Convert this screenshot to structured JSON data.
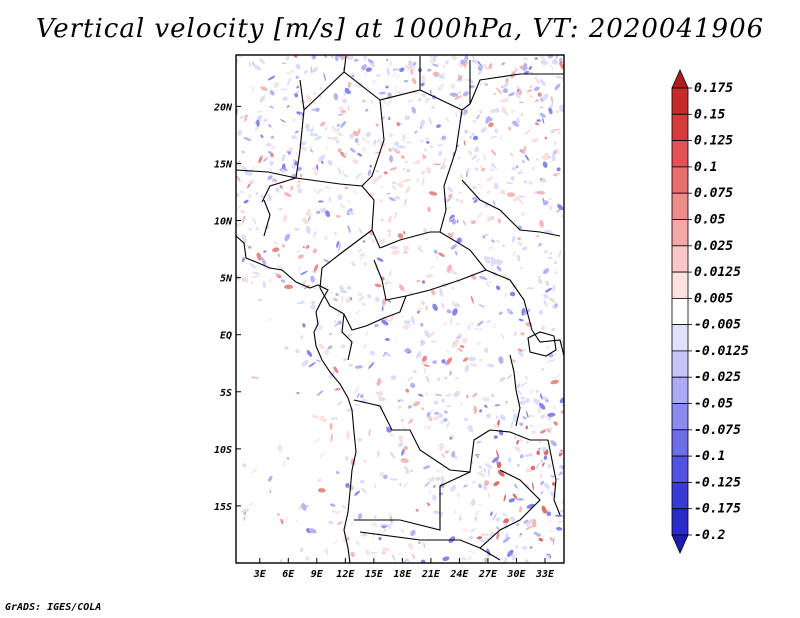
{
  "chart_data": {
    "type": "heatmap",
    "title": "Vertical velocity [m/s] at 1000hPa, VT: 2020041906",
    "x_ticks": [
      "3E",
      "6E",
      "9E",
      "12E",
      "15E",
      "18E",
      "21E",
      "24E",
      "27E",
      "30E",
      "33E"
    ],
    "x_tick_values": [
      3,
      6,
      9,
      12,
      15,
      18,
      21,
      24,
      27,
      30,
      33
    ],
    "y_ticks": [
      "20N",
      "15N",
      "10N",
      "5N",
      "EQ",
      "5S",
      "10S",
      "15S"
    ],
    "y_tick_values": [
      20,
      15,
      10,
      5,
      0,
      -5,
      -10,
      -15
    ],
    "xlim": [
      0.5,
      35
    ],
    "ylim": [
      -20,
      24.5
    ],
    "colorbar_levels": [
      "0.175",
      "0.15",
      "0.125",
      "0.1",
      "0.075",
      "0.05",
      "0.025",
      "0.0125",
      "0.005",
      "-0.005",
      "-0.0125",
      "-0.025",
      "-0.05",
      "-0.075",
      "-0.1",
      "-0.125",
      "-0.175",
      "-0.2"
    ],
    "colorbar_colors": [
      "#b01c1c",
      "#c62a2a",
      "#d63a3a",
      "#e15252",
      "#e86d6d",
      "#ee8b8b",
      "#f4a9a9",
      "#f8c6c6",
      "#fce1e1",
      "#ffffff",
      "#e1e1fc",
      "#c6c6f8",
      "#a9a9f4",
      "#8b8bee",
      "#6d6de8",
      "#5252e1",
      "#3a3ad6",
      "#2a2ac6",
      "#1c1cb0"
    ],
    "negative_color": "#6060e0",
    "positive_color": "#e06060",
    "colorbar_orientation": "vertical, right"
  },
  "credit": "GrADS: IGES/COLA"
}
